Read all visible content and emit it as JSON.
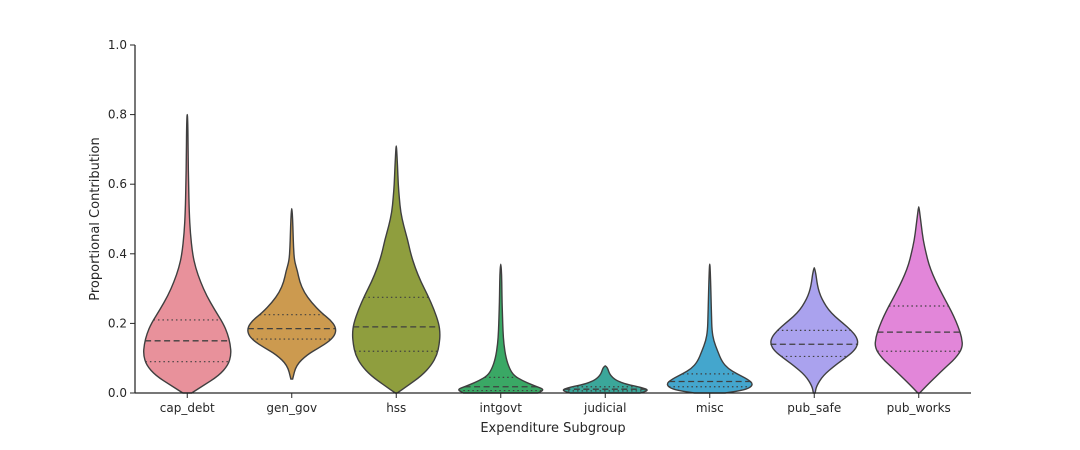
{
  "chart_data": {
    "type": "violin",
    "xlabel": "Expenditure Subgroup",
    "ylabel": "Proportional Contribution",
    "ylim": [
      0.0,
      1.0
    ],
    "yticks": [
      "0.0",
      "0.2",
      "0.4",
      "0.6",
      "0.8",
      "1.0"
    ],
    "grid": false,
    "inner": "quartile",
    "categories": [
      "cap_debt",
      "gen_gov",
      "hss",
      "intgovt",
      "judicial",
      "misc",
      "pub_safe",
      "pub_works"
    ],
    "colors": [
      "#e8919b",
      "#cc9a4f",
      "#8f9e3e",
      "#3aa865",
      "#3ba79a",
      "#44a6cd",
      "#aaa2ee",
      "#e286d9"
    ],
    "violins": [
      {
        "name": "cap_debt",
        "q1": 0.09,
        "median": 0.15,
        "q3": 0.21,
        "profile": [
          [
            0.0,
            0.1
          ],
          [
            0.02,
            0.35
          ],
          [
            0.05,
            0.72
          ],
          [
            0.08,
            0.93
          ],
          [
            0.11,
            1.0
          ],
          [
            0.14,
            0.98
          ],
          [
            0.17,
            0.92
          ],
          [
            0.2,
            0.82
          ],
          [
            0.24,
            0.62
          ],
          [
            0.28,
            0.44
          ],
          [
            0.32,
            0.3
          ],
          [
            0.36,
            0.19
          ],
          [
            0.4,
            0.12
          ],
          [
            0.46,
            0.07
          ],
          [
            0.52,
            0.045
          ],
          [
            0.6,
            0.03
          ],
          [
            0.68,
            0.02
          ],
          [
            0.76,
            0.015
          ],
          [
            0.8,
            0.005
          ]
        ]
      },
      {
        "name": "gen_gov",
        "q1": 0.155,
        "median": 0.185,
        "q3": 0.225,
        "profile": [
          [
            0.04,
            0.02
          ],
          [
            0.08,
            0.1
          ],
          [
            0.11,
            0.35
          ],
          [
            0.13,
            0.62
          ],
          [
            0.15,
            0.87
          ],
          [
            0.17,
            1.0
          ],
          [
            0.19,
            1.0
          ],
          [
            0.21,
            0.88
          ],
          [
            0.23,
            0.68
          ],
          [
            0.26,
            0.45
          ],
          [
            0.29,
            0.28
          ],
          [
            0.32,
            0.18
          ],
          [
            0.35,
            0.13
          ],
          [
            0.38,
            0.06
          ],
          [
            0.42,
            0.04
          ],
          [
            0.46,
            0.03
          ],
          [
            0.5,
            0.02
          ],
          [
            0.53,
            0.005
          ]
        ]
      },
      {
        "name": "hss",
        "q1": 0.12,
        "median": 0.19,
        "q3": 0.275,
        "profile": [
          [
            0.0,
            0.02
          ],
          [
            0.02,
            0.25
          ],
          [
            0.05,
            0.58
          ],
          [
            0.08,
            0.8
          ],
          [
            0.11,
            0.93
          ],
          [
            0.14,
            0.98
          ],
          [
            0.17,
            1.0
          ],
          [
            0.2,
            0.97
          ],
          [
            0.24,
            0.86
          ],
          [
            0.28,
            0.72
          ],
          [
            0.32,
            0.56
          ],
          [
            0.36,
            0.43
          ],
          [
            0.4,
            0.33
          ],
          [
            0.44,
            0.26
          ],
          [
            0.48,
            0.17
          ],
          [
            0.52,
            0.1
          ],
          [
            0.56,
            0.07
          ],
          [
            0.6,
            0.045
          ],
          [
            0.65,
            0.03
          ],
          [
            0.71,
            0.005
          ]
        ]
      },
      {
        "name": "intgovt",
        "q1": 0.007,
        "median": 0.018,
        "q3": 0.045,
        "profile": [
          [
            0.0,
            0.85
          ],
          [
            0.01,
            1.0
          ],
          [
            0.02,
            0.78
          ],
          [
            0.035,
            0.5
          ],
          [
            0.05,
            0.3
          ],
          [
            0.07,
            0.2
          ],
          [
            0.1,
            0.12
          ],
          [
            0.14,
            0.07
          ],
          [
            0.18,
            0.05
          ],
          [
            0.22,
            0.04
          ],
          [
            0.26,
            0.03
          ],
          [
            0.3,
            0.025
          ],
          [
            0.34,
            0.02
          ],
          [
            0.37,
            0.005
          ]
        ]
      },
      {
        "name": "judicial",
        "q1": 0.006,
        "median": 0.011,
        "q3": 0.018,
        "profile": [
          [
            0.0,
            0.8
          ],
          [
            0.008,
            1.0
          ],
          [
            0.016,
            0.82
          ],
          [
            0.025,
            0.48
          ],
          [
            0.035,
            0.27
          ],
          [
            0.045,
            0.16
          ],
          [
            0.055,
            0.1
          ],
          [
            0.065,
            0.07
          ],
          [
            0.072,
            0.05
          ],
          [
            0.078,
            0.005
          ]
        ]
      },
      {
        "name": "misc",
        "q1": 0.018,
        "median": 0.033,
        "q3": 0.055,
        "profile": [
          [
            0.0,
            0.35
          ],
          [
            0.01,
            0.85
          ],
          [
            0.025,
            1.0
          ],
          [
            0.04,
            0.86
          ],
          [
            0.055,
            0.62
          ],
          [
            0.07,
            0.42
          ],
          [
            0.09,
            0.28
          ],
          [
            0.12,
            0.18
          ],
          [
            0.15,
            0.09
          ],
          [
            0.18,
            0.05
          ],
          [
            0.22,
            0.04
          ],
          [
            0.27,
            0.03
          ],
          [
            0.32,
            0.02
          ],
          [
            0.37,
            0.005
          ]
        ]
      },
      {
        "name": "pub_safe",
        "q1": 0.105,
        "median": 0.14,
        "q3": 0.18,
        "profile": [
          [
            0.0,
            0.02
          ],
          [
            0.02,
            0.05
          ],
          [
            0.05,
            0.2
          ],
          [
            0.08,
            0.48
          ],
          [
            0.1,
            0.7
          ],
          [
            0.12,
            0.9
          ],
          [
            0.14,
            1.0
          ],
          [
            0.16,
            0.97
          ],
          [
            0.18,
            0.84
          ],
          [
            0.2,
            0.66
          ],
          [
            0.22,
            0.47
          ],
          [
            0.24,
            0.32
          ],
          [
            0.26,
            0.22
          ],
          [
            0.28,
            0.14
          ],
          [
            0.3,
            0.09
          ],
          [
            0.32,
            0.06
          ],
          [
            0.34,
            0.04
          ],
          [
            0.36,
            0.005
          ]
        ]
      },
      {
        "name": "pub_works",
        "q1": 0.12,
        "median": 0.175,
        "q3": 0.25,
        "profile": [
          [
            0.0,
            0.02
          ],
          [
            0.03,
            0.25
          ],
          [
            0.07,
            0.58
          ],
          [
            0.1,
            0.84
          ],
          [
            0.13,
            1.0
          ],
          [
            0.16,
            0.98
          ],
          [
            0.19,
            0.9
          ],
          [
            0.22,
            0.8
          ],
          [
            0.25,
            0.68
          ],
          [
            0.28,
            0.55
          ],
          [
            0.31,
            0.43
          ],
          [
            0.34,
            0.32
          ],
          [
            0.37,
            0.23
          ],
          [
            0.4,
            0.17
          ],
          [
            0.44,
            0.1
          ],
          [
            0.48,
            0.06
          ],
          [
            0.51,
            0.03
          ],
          [
            0.535,
            0.005
          ]
        ]
      }
    ]
  }
}
